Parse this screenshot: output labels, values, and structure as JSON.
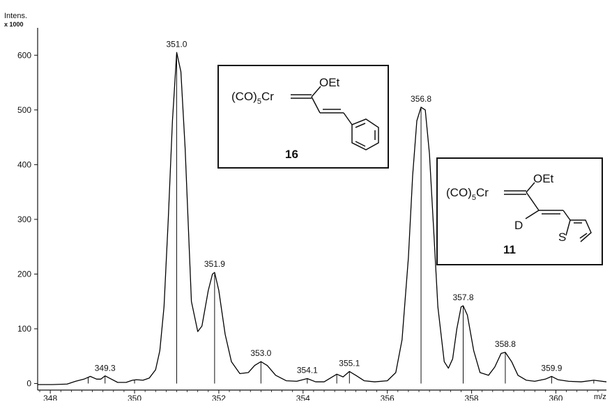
{
  "chart_data": {
    "type": "line",
    "title": "",
    "xlabel": "m/z",
    "ylabel": "Intens.",
    "ylabel_multiplier": "x 1000",
    "xlim": [
      347.7,
      361.2
    ],
    "ylim": [
      -12,
      650
    ],
    "x_ticks": [
      348,
      350,
      352,
      354,
      356,
      358,
      360
    ],
    "y_ticks": [
      0,
      100,
      200,
      300,
      400,
      500,
      600
    ],
    "grid": false,
    "series": [
      {
        "line_color": "#000000",
        "points": [
          [
            347.7,
            -2
          ],
          [
            348.05,
            -2
          ],
          [
            348.4,
            -1
          ],
          [
            348.6,
            4
          ],
          [
            348.8,
            8
          ],
          [
            348.95,
            13
          ],
          [
            349.1,
            8
          ],
          [
            349.2,
            8
          ],
          [
            349.3,
            14
          ],
          [
            349.45,
            8
          ],
          [
            349.6,
            2
          ],
          [
            349.8,
            2
          ],
          [
            349.95,
            6
          ],
          [
            350.05,
            7
          ],
          [
            350.2,
            6
          ],
          [
            350.35,
            10
          ],
          [
            350.5,
            25
          ],
          [
            350.6,
            60
          ],
          [
            350.7,
            140
          ],
          [
            350.8,
            300
          ],
          [
            350.9,
            480
          ],
          [
            351.0,
            605
          ],
          [
            351.1,
            570
          ],
          [
            351.2,
            430
          ],
          [
            351.35,
            150
          ],
          [
            351.5,
            95
          ],
          [
            351.6,
            105
          ],
          [
            351.75,
            170
          ],
          [
            351.85,
            200
          ],
          [
            351.9,
            203
          ],
          [
            352.0,
            170
          ],
          [
            352.15,
            90
          ],
          [
            352.3,
            40
          ],
          [
            352.5,
            18
          ],
          [
            352.7,
            20
          ],
          [
            352.85,
            33
          ],
          [
            353.0,
            40
          ],
          [
            353.15,
            33
          ],
          [
            353.35,
            15
          ],
          [
            353.6,
            5
          ],
          [
            353.85,
            4
          ],
          [
            354.1,
            9
          ],
          [
            354.3,
            3
          ],
          [
            354.5,
            3
          ],
          [
            354.65,
            10
          ],
          [
            354.8,
            17
          ],
          [
            354.95,
            12
          ],
          [
            355.1,
            22
          ],
          [
            355.25,
            15
          ],
          [
            355.45,
            5
          ],
          [
            355.7,
            3
          ],
          [
            356.0,
            5
          ],
          [
            356.2,
            20
          ],
          [
            356.35,
            80
          ],
          [
            356.5,
            230
          ],
          [
            356.6,
            380
          ],
          [
            356.7,
            480
          ],
          [
            356.8,
            505
          ],
          [
            356.9,
            500
          ],
          [
            357.0,
            420
          ],
          [
            357.1,
            280
          ],
          [
            357.2,
            140
          ],
          [
            357.35,
            40
          ],
          [
            357.45,
            28
          ],
          [
            357.55,
            45
          ],
          [
            357.65,
            100
          ],
          [
            357.75,
            140
          ],
          [
            357.8,
            142
          ],
          [
            357.9,
            125
          ],
          [
            358.05,
            60
          ],
          [
            358.2,
            20
          ],
          [
            358.4,
            15
          ],
          [
            358.55,
            30
          ],
          [
            358.7,
            55
          ],
          [
            358.8,
            57
          ],
          [
            358.95,
            40
          ],
          [
            359.1,
            15
          ],
          [
            359.3,
            6
          ],
          [
            359.5,
            4
          ],
          [
            359.75,
            8
          ],
          [
            359.9,
            13
          ],
          [
            360.05,
            7
          ],
          [
            360.3,
            4
          ],
          [
            360.6,
            3
          ],
          [
            360.9,
            6
          ],
          [
            361.0,
            5
          ],
          [
            361.2,
            3
          ]
        ]
      }
    ],
    "centroid_sticks": [
      {
        "mz": 348.9,
        "intensity": 12
      },
      {
        "mz": 349.3,
        "intensity": 13
      },
      {
        "mz": 350.0,
        "intensity": 6
      },
      {
        "mz": 351.0,
        "intensity": 600
      },
      {
        "mz": 351.9,
        "intensity": 200
      },
      {
        "mz": 353.0,
        "intensity": 40
      },
      {
        "mz": 354.1,
        "intensity": 9
      },
      {
        "mz": 354.8,
        "intensity": 16
      },
      {
        "mz": 355.1,
        "intensity": 21
      },
      {
        "mz": 356.8,
        "intensity": 503
      },
      {
        "mz": 357.8,
        "intensity": 141
      },
      {
        "mz": 358.8,
        "intensity": 56
      },
      {
        "mz": 359.9,
        "intensity": 13
      },
      {
        "mz": 360.9,
        "intensity": 5
      }
    ],
    "peak_labels": [
      {
        "text": "349.3",
        "mz": 349.3,
        "intensity": 13
      },
      {
        "text": "351.0",
        "mz": 351.0,
        "intensity": 605
      },
      {
        "text": "351.9",
        "mz": 351.9,
        "intensity": 203
      },
      {
        "text": "353.0",
        "mz": 353.0,
        "intensity": 40
      },
      {
        "text": "354.1",
        "mz": 354.1,
        "intensity": 9
      },
      {
        "text": "355.1",
        "mz": 355.1,
        "intensity": 22
      },
      {
        "text": "356.8",
        "mz": 356.8,
        "intensity": 505
      },
      {
        "text": "357.8",
        "mz": 357.8,
        "intensity": 142
      },
      {
        "text": "358.8",
        "mz": 358.8,
        "intensity": 57
      },
      {
        "text": "359.9",
        "mz": 359.9,
        "intensity": 13
      }
    ]
  },
  "structures": {
    "compound_16": {
      "label": "16",
      "metal_fragment_prefix": "(CO)",
      "metal_fragment_subscript": "5",
      "metal_fragment_metal": "Cr",
      "substituent": "OEt"
    },
    "compound_11": {
      "label": "11",
      "metal_fragment_prefix": "(CO)",
      "metal_fragment_subscript": "5",
      "metal_fragment_metal": "Cr",
      "substituent": "OEt",
      "deuterium": "D",
      "heteroatom": "S"
    }
  }
}
